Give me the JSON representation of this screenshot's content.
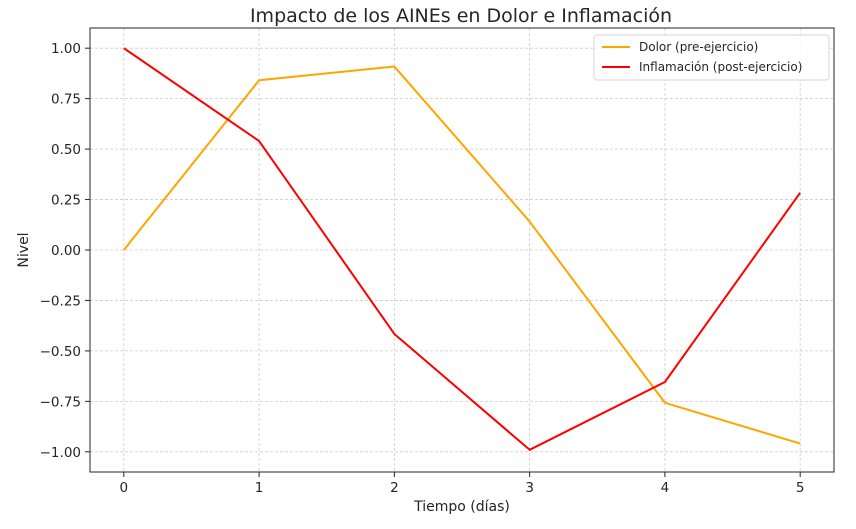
{
  "chart_data": {
    "type": "line",
    "title": "Impacto de los AINEs en Dolor e Inflamación",
    "xlabel": "Tiempo (días)",
    "ylabel": "Nivel",
    "x": [
      0,
      1,
      2,
      3,
      4,
      5
    ],
    "xlim": [
      -0.25,
      5.25
    ],
    "ylim": [
      -1.1,
      1.1
    ],
    "xticks": [
      0,
      1,
      2,
      3,
      4,
      5
    ],
    "xtick_labels": [
      "0",
      "1",
      "2",
      "3",
      "4",
      "5"
    ],
    "yticks": [
      1.0,
      0.75,
      0.5,
      0.25,
      0.0,
      -0.25,
      -0.5,
      -0.75,
      -1.0
    ],
    "ytick_labels": [
      "1.00",
      "0.75",
      "0.50",
      "0.25",
      "0.00",
      "−0.25",
      "−0.50",
      "−0.75",
      "−1.00"
    ],
    "grid": true,
    "legend_position": "top-right",
    "series": [
      {
        "name": "Dolor (pre-ejercicio)",
        "color": "#ffa500",
        "values": [
          0.0,
          0.841,
          0.909,
          0.141,
          -0.757,
          -0.959
        ]
      },
      {
        "name": "Inflamación (post-ejercicio)",
        "color": "#ff0000",
        "values": [
          1.0,
          0.54,
          -0.416,
          -0.99,
          -0.654,
          0.284
        ]
      }
    ]
  }
}
